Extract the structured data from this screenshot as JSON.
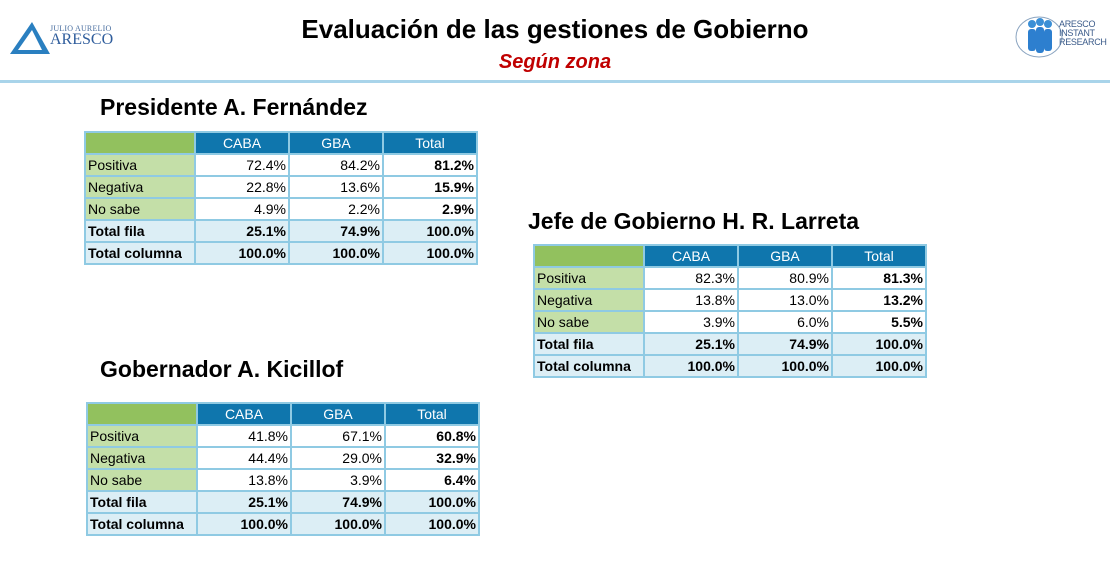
{
  "header": {
    "title": "Evaluación de las gestiones de Gobierno",
    "subtitle": "Según zona",
    "logo_left": {
      "small": "JULIO AURELIO",
      "big": "ARESCO"
    },
    "logo_right": {
      "lines": [
        "ARESCO",
        "INSTANT",
        "RESEARCH"
      ]
    }
  },
  "colors": {
    "header_blue": "#0f76ad",
    "corner_green": "#92c15e",
    "label_green": "#c4dfa8",
    "total_blue": "#dceef5",
    "subtitle_red": "#c00000"
  },
  "tables": [
    {
      "title": "Presidente A. Fernández",
      "columns": [
        "CABA",
        "GBA",
        "Total"
      ],
      "rows": [
        {
          "label": "Positiva",
          "values": [
            "72.4%",
            "84.2%",
            "81.2%"
          ]
        },
        {
          "label": "Negativa",
          "values": [
            "22.8%",
            "13.6%",
            "15.9%"
          ]
        },
        {
          "label": "No sabe",
          "values": [
            "4.9%",
            "2.2%",
            "2.9%"
          ]
        },
        {
          "label": "Total fila",
          "values": [
            "25.1%",
            "74.9%",
            "100.0%"
          ],
          "total": true
        },
        {
          "label": "Total columna",
          "values": [
            "100.0%",
            "100.0%",
            "100.0%"
          ],
          "total": true
        }
      ]
    },
    {
      "title": "Gobernador A. Kicillof",
      "columns": [
        "CABA",
        "GBA",
        "Total"
      ],
      "rows": [
        {
          "label": "Positiva",
          "values": [
            "41.8%",
            "67.1%",
            "60.8%"
          ]
        },
        {
          "label": "Negativa",
          "values": [
            "44.4%",
            "29.0%",
            "32.9%"
          ]
        },
        {
          "label": "No sabe",
          "values": [
            "13.8%",
            "3.9%",
            "6.4%"
          ]
        },
        {
          "label": "Total fila",
          "values": [
            "25.1%",
            "74.9%",
            "100.0%"
          ],
          "total": true
        },
        {
          "label": "Total columna",
          "values": [
            "100.0%",
            "100.0%",
            "100.0%"
          ],
          "total": true
        }
      ]
    },
    {
      "title": "Jefe de Gobierno H. R. Larreta",
      "columns": [
        "CABA",
        "GBA",
        "Total"
      ],
      "rows": [
        {
          "label": "Positiva",
          "values": [
            "82.3%",
            "80.9%",
            "81.3%"
          ]
        },
        {
          "label": "Negativa",
          "values": [
            "13.8%",
            "13.0%",
            "13.2%"
          ]
        },
        {
          "label": "No sabe",
          "values": [
            "3.9%",
            "6.0%",
            "5.5%"
          ]
        },
        {
          "label": "Total fila",
          "values": [
            "25.1%",
            "74.9%",
            "100.0%"
          ],
          "total": true
        },
        {
          "label": "Total columna",
          "values": [
            "100.0%",
            "100.0%",
            "100.0%"
          ],
          "total": true
        }
      ]
    }
  ]
}
